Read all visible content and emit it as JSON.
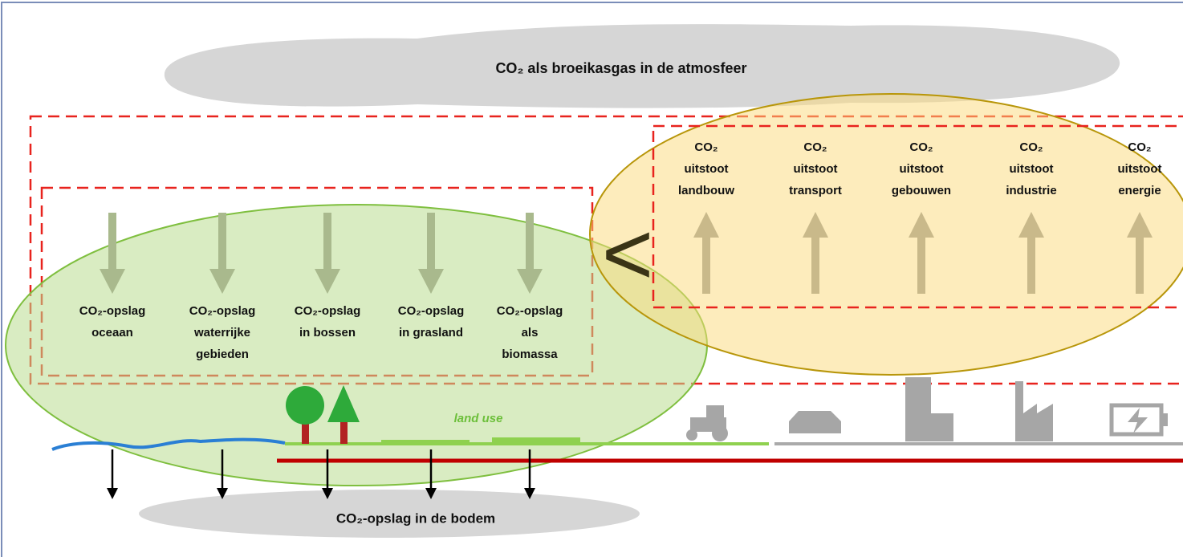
{
  "atmosphere": "CO₂ als broeikasgas in de atmosfeer",
  "storage": [
    [
      "CO₂-opslag",
      "oceaan"
    ],
    [
      "CO₂-opslag",
      "waterrijke",
      "gebieden"
    ],
    [
      "CO₂-opslag",
      "in bossen"
    ],
    [
      "CO₂-opslag",
      "in grasland"
    ],
    [
      "CO₂-opslag",
      "als",
      "biomassa"
    ]
  ],
  "emissions": [
    [
      "CO₂",
      "uitstoot",
      "landbouw"
    ],
    [
      "CO₂",
      "uitstoot",
      "transport"
    ],
    [
      "CO₂",
      "uitstoot",
      "gebouwen"
    ],
    [
      "CO₂",
      "uitstoot",
      "industrie"
    ],
    [
      "CO₂",
      "uitstoot",
      "energie"
    ]
  ],
  "comparison": "<",
  "land_use": "land use",
  "soil": "CO₂-opslag in de bodem"
}
